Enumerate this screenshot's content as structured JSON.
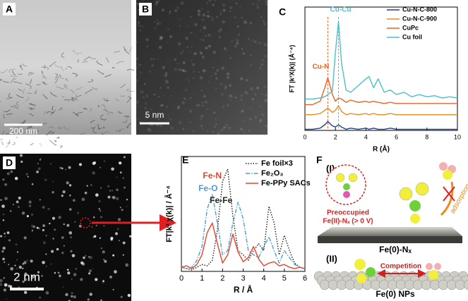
{
  "panels": {
    "A": {
      "label": "A",
      "scale_bar": "200 nm"
    },
    "B": {
      "label": "B",
      "scale_bar": "5 nm"
    },
    "D": {
      "label": "D",
      "scale_bar": "2 nm"
    }
  },
  "chart_data": [
    {
      "type": "line",
      "label": "C",
      "xlabel": "R (Å)",
      "ylabel": "FT |k³X(k)| (Å⁻⁴)",
      "x": [
        0,
        0.5,
        1,
        1.3,
        1.5,
        1.8,
        2,
        2.2,
        2.4,
        2.7,
        3,
        3.5,
        4,
        4.2,
        4.5,
        4.8,
        5.2,
        5.6,
        6,
        6.5,
        7,
        7.5,
        8,
        8.5,
        9,
        9.5,
        10
      ],
      "series": [
        {
          "name": "Cu-N-C-800",
          "color": "#1f3f8f",
          "style": "solid",
          "values": [
            0.1,
            0.1,
            0.2,
            0.5,
            0.8,
            0.4,
            0.3,
            0.5,
            0.3,
            0.1,
            0.2,
            0.1,
            0.2,
            0.1,
            0.2,
            0.1,
            0.1,
            0.2,
            0.1,
            0.1,
            0.1,
            0.1,
            0.1,
            0.1,
            0.1,
            0.1,
            0.1
          ]
        },
        {
          "name": "Cu-N-C-900",
          "color": "#f08a1c",
          "style": "solid",
          "values": [
            1.4,
            1.4,
            1.5,
            1.8,
            2.0,
            1.6,
            1.8,
            2.2,
            1.7,
            1.4,
            1.5,
            1.4,
            1.5,
            1.4,
            1.5,
            1.4,
            1.4,
            1.5,
            1.4,
            1.4,
            1.4,
            1.4,
            1.4,
            1.4,
            1.4,
            1.4,
            1.4
          ]
        },
        {
          "name": "CuPc",
          "color": "#e8642a",
          "style": "solid",
          "values": [
            2.3,
            2.3,
            2.6,
            3.8,
            4.7,
            3.2,
            2.6,
            2.9,
            2.8,
            2.5,
            2.7,
            2.5,
            2.6,
            2.5,
            2.6,
            2.5,
            2.4,
            2.5,
            2.4,
            2.4,
            2.4,
            2.4,
            2.4,
            2.4,
            2.4,
            2.4,
            2.4
          ]
        },
        {
          "name": "Cu foil",
          "color": "#4cc0c8",
          "style": "solid",
          "values": [
            2.8,
            2.8,
            2.9,
            3.0,
            3.2,
            3.5,
            7.0,
            9.7,
            6.0,
            3.6,
            3.4,
            4.0,
            4.6,
            4.8,
            3.8,
            4.6,
            3.4,
            3.6,
            3.2,
            3.4,
            3.0,
            3.2,
            3.0,
            3.1,
            2.9,
            3.0,
            2.9
          ]
        }
      ],
      "xlim": [
        0,
        10
      ],
      "xticks": [
        0,
        2,
        4,
        6,
        8,
        10
      ],
      "ylim": [
        0,
        11
      ],
      "annotations": [
        {
          "text": "Cu-N",
          "x": 1.5,
          "color": "#e8642a"
        },
        {
          "text": "Cu-Cu",
          "x": 2.2,
          "color": "#4cc0c8"
        }
      ],
      "legend": "upper right"
    },
    {
      "type": "line",
      "label": "E",
      "xlabel": "R / Å",
      "ylabel": "FT|k³ χ(k)| / Å⁻⁴",
      "x": [
        0,
        0.25,
        0.5,
        0.75,
        1,
        1.25,
        1.5,
        1.75,
        2,
        2.25,
        2.5,
        2.75,
        3,
        3.25,
        3.5,
        3.75,
        4,
        4.25,
        4.5,
        4.75,
        5,
        5.25,
        5.5,
        5.75,
        6
      ],
      "series": [
        {
          "name": "Fe foil×3",
          "color": "#222222",
          "style": "dotted",
          "values": [
            0.3,
            0.2,
            0.1,
            0.3,
            0.5,
            0.4,
            0.8,
            3,
            6.5,
            7.4,
            4,
            1.5,
            1.2,
            0.8,
            1.5,
            2,
            1.5,
            4.7,
            3.5,
            1.2,
            2.6,
            1.5,
            0.6,
            0.3,
            0.2
          ]
        },
        {
          "name": "Fe₂O₃",
          "color": "#4a9fd8",
          "style": "dashdot",
          "values": [
            0.3,
            0.2,
            0.3,
            0.8,
            1.8,
            4.5,
            5.6,
            3.5,
            1.2,
            1.5,
            3.5,
            5,
            3.8,
            1.5,
            1.2,
            1.0,
            1.8,
            2.5,
            1.5,
            0.6,
            1.5,
            1.0,
            0.5,
            0.3,
            0.2
          ]
        },
        {
          "name": "Fe-PPy SACs",
          "color": "#e8432a",
          "style": "solid",
          "values": [
            0.3,
            0.4,
            0.2,
            0.5,
            1.2,
            2.8,
            3.5,
            2,
            0.6,
            1.2,
            2.7,
            1.4,
            0.7,
            1.0,
            1.8,
            0.9,
            0.4,
            0.6,
            0.7,
            0.4,
            0.5,
            0.3,
            0.2,
            0.3,
            0.2
          ]
        }
      ],
      "xlim": [
        0,
        6
      ],
      "xticks": [
        0,
        1,
        2,
        3,
        4,
        5,
        6
      ],
      "ylim": [
        0,
        8.3
      ],
      "annotations": [
        {
          "text": "Fe-Fe",
          "x": 2.2,
          "color": "#222222"
        },
        {
          "text": "Fe-O",
          "x": 1.5,
          "color": "#4a9fd8"
        },
        {
          "text": "Fe-N",
          "x": 1.5,
          "color": "#e8432a"
        }
      ],
      "legend": "upper right"
    }
  ],
  "diagram_F": {
    "label": "F",
    "part1": "(I)",
    "preoccupied": "Preoccupied",
    "site": "Fe(II)-Nₓ (> 0 V)",
    "adsorption": "adsorption",
    "site1": "Fe(0)-Nₓ",
    "part2": "(II)",
    "competition": "Competition",
    "site2": "Fe(0) NPs"
  }
}
